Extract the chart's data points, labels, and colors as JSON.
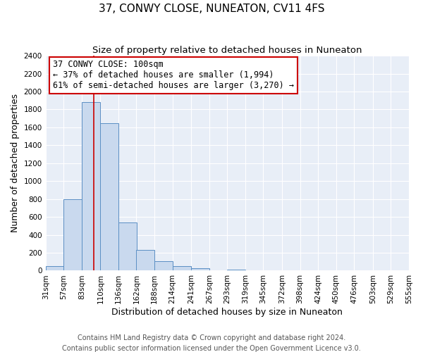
{
  "title": "37, CONWY CLOSE, NUNEATON, CV11 4FS",
  "subtitle": "Size of property relative to detached houses in Nuneaton",
  "xlabel": "Distribution of detached houses by size in Nuneaton",
  "ylabel": "Number of detached properties",
  "bin_edges": [
    31,
    57,
    83,
    110,
    136,
    162,
    188,
    214,
    241,
    267,
    293,
    319,
    345,
    372,
    398,
    424,
    450,
    476,
    503,
    529,
    555
  ],
  "bar_heights": [
    50,
    800,
    1880,
    1650,
    540,
    235,
    105,
    50,
    25,
    0,
    15,
    0,
    0,
    0,
    0,
    0,
    0,
    0,
    0,
    0
  ],
  "bar_color": "#c9d9ee",
  "bar_edge_color": "#5b8fc4",
  "property_line_x": 100,
  "property_line_color": "#cc0000",
  "annotation_title": "37 CONWY CLOSE: 100sqm",
  "annotation_line1": "← 37% of detached houses are smaller (1,994)",
  "annotation_line2": "61% of semi-detached houses are larger (3,270) →",
  "annotation_box_facecolor": "#ffffff",
  "annotation_box_edgecolor": "#cc0000",
  "ylim": [
    0,
    2400
  ],
  "yticks": [
    0,
    200,
    400,
    600,
    800,
    1000,
    1200,
    1400,
    1600,
    1800,
    2000,
    2200,
    2400
  ],
  "plot_bg_color": "#e8eef7",
  "fig_bg_color": "#ffffff",
  "grid_color": "#ffffff",
  "title_fontsize": 11,
  "subtitle_fontsize": 9.5,
  "axis_label_fontsize": 9,
  "tick_fontsize": 7.5,
  "annotation_fontsize": 8.5,
  "footer_fontsize": 7,
  "footer_line1": "Contains HM Land Registry data © Crown copyright and database right 2024.",
  "footer_line2": "Contains public sector information licensed under the Open Government Licence v3.0."
}
